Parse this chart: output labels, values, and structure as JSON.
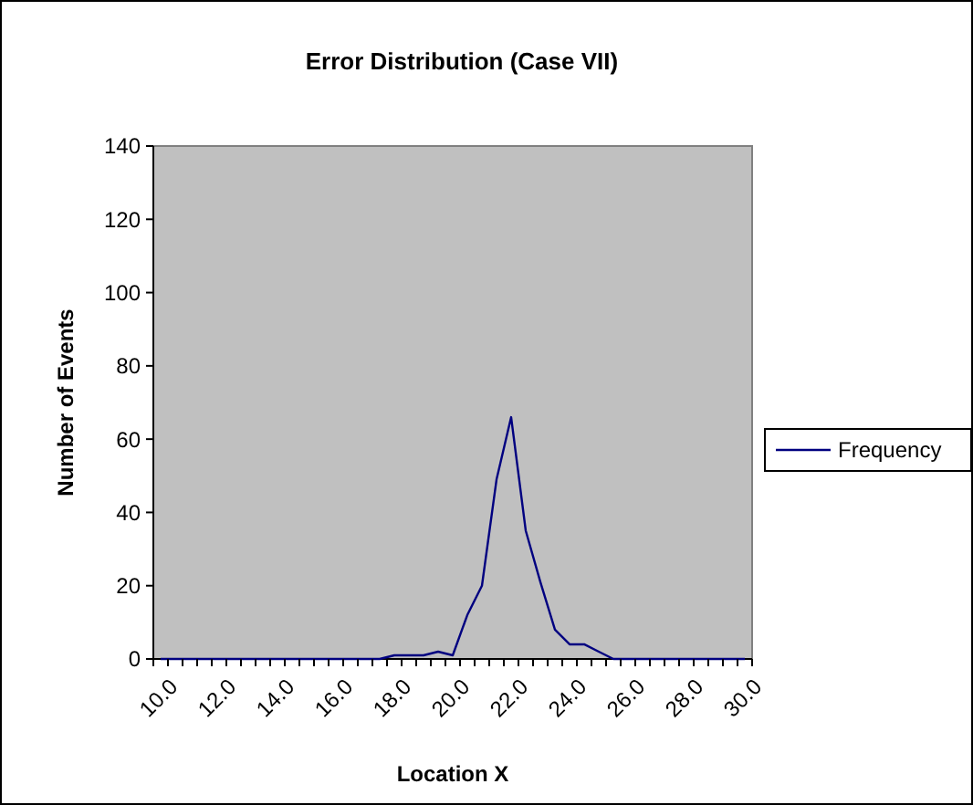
{
  "chart_data": {
    "type": "line",
    "title": "Error Distribution (Case VII)",
    "xlabel": "Location X",
    "ylabel": "Number of Events",
    "categories": [
      "10.0",
      null,
      null,
      null,
      "12.0",
      null,
      null,
      null,
      "14.0",
      null,
      null,
      null,
      "16.0",
      null,
      null,
      null,
      "18.0",
      null,
      null,
      null,
      "20.0",
      null,
      null,
      null,
      "22.0",
      null,
      null,
      null,
      "24.0",
      null,
      null,
      null,
      "26.0",
      null,
      null,
      null,
      "28.0",
      null,
      null,
      null,
      "30.0"
    ],
    "series": [
      {
        "name": "Frequency",
        "color": "#000080",
        "values": [
          0,
          0,
          0,
          0,
          0,
          0,
          0,
          0,
          0,
          0,
          0,
          0,
          0,
          0,
          0,
          0,
          1,
          1,
          1,
          2,
          1,
          12,
          20,
          49,
          66,
          35,
          21,
          8,
          4,
          4,
          2,
          0,
          0,
          0,
          0,
          0,
          0,
          0,
          0,
          0,
          0
        ]
      }
    ],
    "ylim": [
      0,
      140
    ],
    "yticks": [
      0,
      20,
      40,
      60,
      80,
      100,
      120,
      140
    ],
    "grid": false,
    "legend": "right",
    "marker": "none",
    "line_style": "solid"
  }
}
